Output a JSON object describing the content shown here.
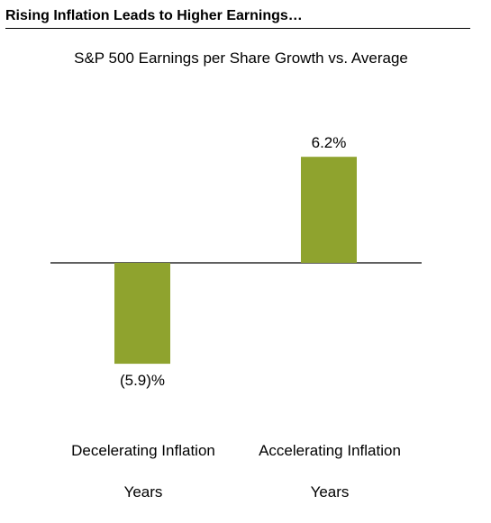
{
  "header": {
    "title": "Rising Inflation Leads to Higher Earnings…"
  },
  "chart_data": {
    "type": "bar",
    "title": "S&P 500 Earnings per Share Growth vs. Average",
    "xlabel": "",
    "ylabel": "",
    "categories": [
      "Decelerating Inflation Years",
      "Accelerating Inflation Years"
    ],
    "category_lines": [
      [
        "Decelerating Inflation",
        "Years"
      ],
      [
        "Accelerating Inflation",
        "Years"
      ]
    ],
    "values": [
      -5.9,
      6.2
    ],
    "data_labels": [
      "(5.9)%",
      "6.2%"
    ],
    "unit": "%",
    "bar_color": "#8fa32e",
    "axis_color": "#000000",
    "grid": false,
    "legend": "none"
  }
}
